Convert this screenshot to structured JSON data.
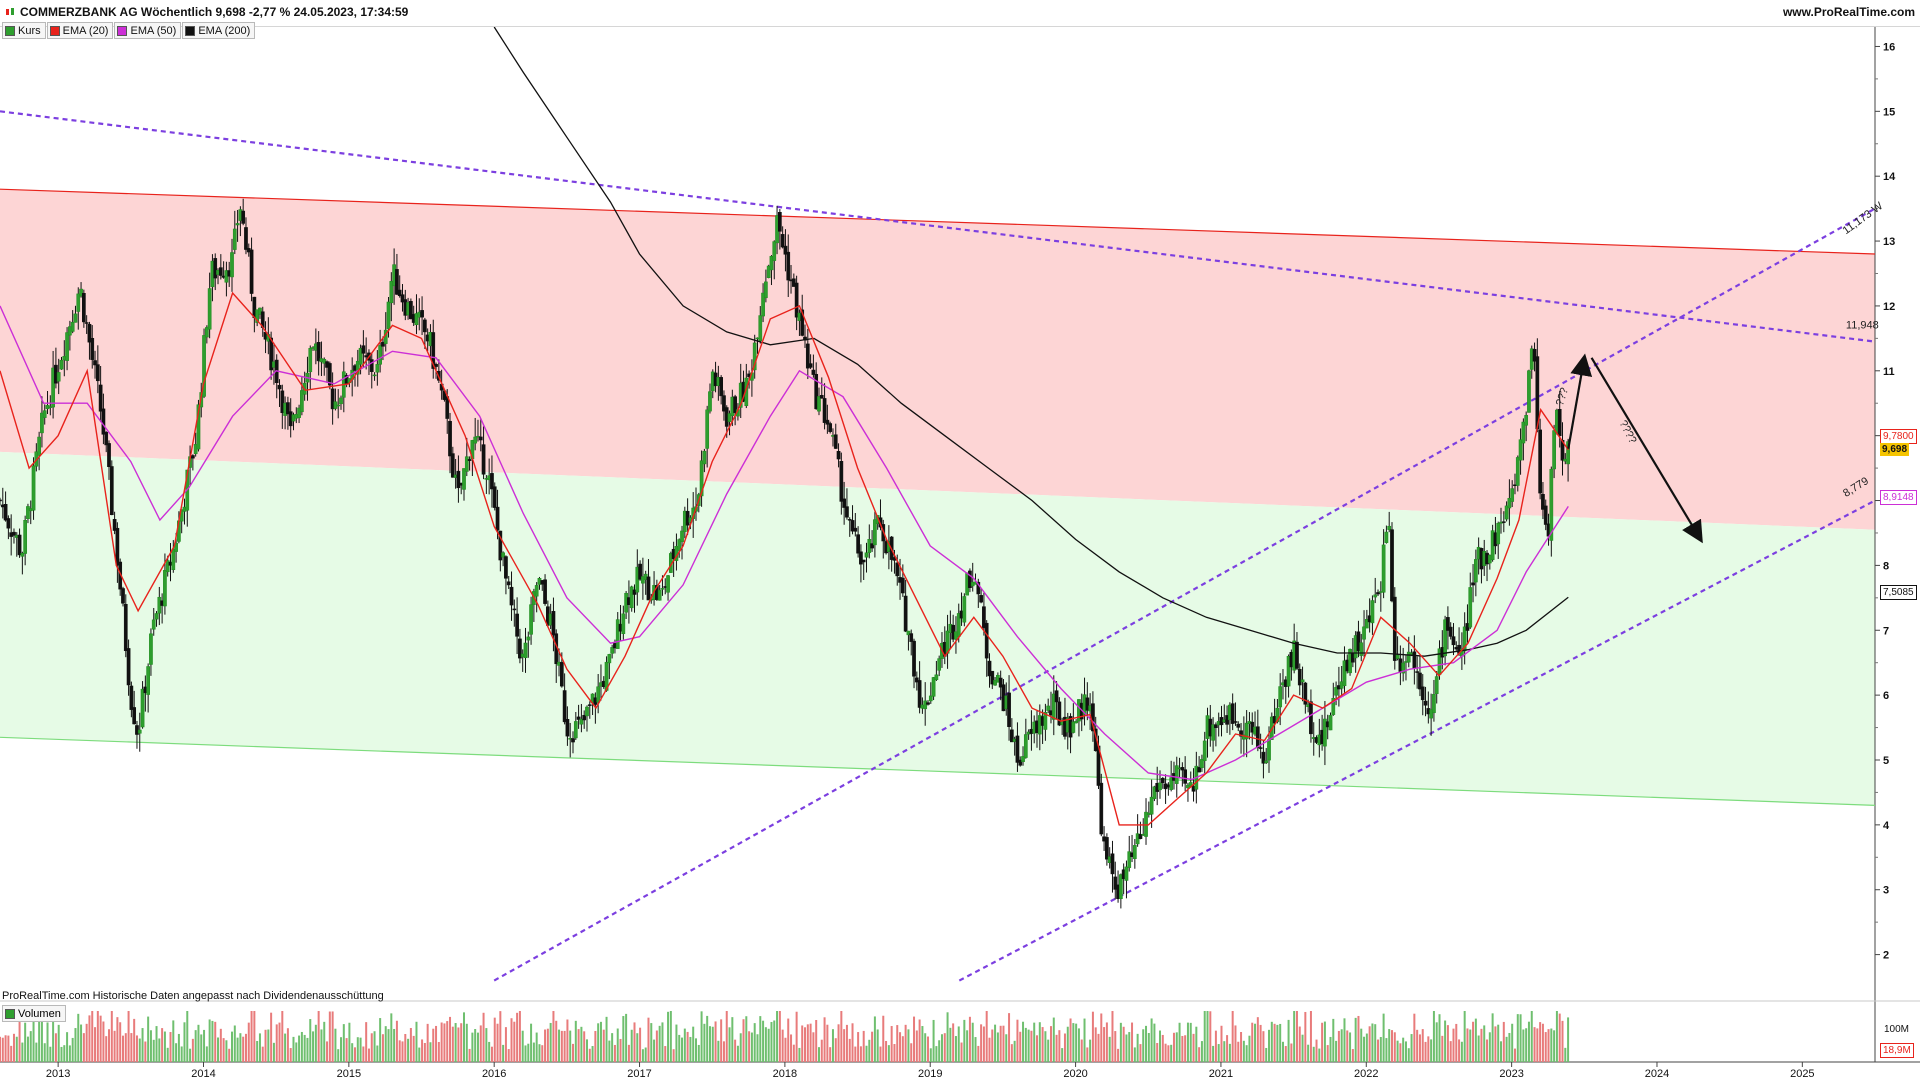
{
  "header": {
    "title": "COMMERZBANK AG Wöchentlich 9,698 -2,77 % 24.05.2023, 17:34:59",
    "source": "www.ProRealTime.com"
  },
  "legend": [
    {
      "label": "Kurs",
      "color": "#2e9e2e"
    },
    {
      "label": "EMA (20)",
      "color": "#e8231c"
    },
    {
      "label": "EMA (50)",
      "color": "#cc2fd6"
    },
    {
      "label": "EMA (200)",
      "color": "#111111"
    }
  ],
  "footer": {
    "note": "ProRealTime.com  Historische Daten angepasst nach Dividendenausschüttung",
    "volume_label": "Volumen",
    "vol_axis_label": "100M",
    "vol_current": "18,9M"
  },
  "price_labels": {
    "current": "9,698",
    "ema20": "9,7800",
    "ema50": "8,9148",
    "ema200": "7,5085"
  },
  "annotations": {
    "upper_channel_value": "11,173 W",
    "downtrend_value": "11,948",
    "lower_channel_value": "8,779",
    "question_1": "???",
    "question_2": "????"
  },
  "chart_data": {
    "type": "candlestick",
    "title": "COMMERZBANK AG Wöchentlich",
    "x_tick_labels": [
      "2013",
      "2014",
      "2015",
      "2016",
      "2017",
      "2018",
      "2019",
      "2020",
      "2021",
      "2022",
      "2023",
      "2024",
      "2025"
    ],
    "y_tick_labels": [
      "2",
      "3",
      "4",
      "5",
      "6",
      "7",
      "8",
      "9",
      "10",
      "11",
      "12",
      "13",
      "14",
      "15",
      "16"
    ],
    "ylim": [
      1.3,
      16.3
    ],
    "x_range": [
      2012.6,
      2025.5
    ],
    "price_path": [
      [
        2012.6,
        9.0
      ],
      [
        2012.75,
        8.2
      ],
      [
        2012.9,
        10.3
      ],
      [
        2013.05,
        11.5
      ],
      [
        2013.15,
        12.3
      ],
      [
        2013.3,
        10.3
      ],
      [
        2013.4,
        8.3
      ],
      [
        2013.5,
        6.0
      ],
      [
        2013.55,
        5.4
      ],
      [
        2013.65,
        7.0
      ],
      [
        2013.8,
        8.3
      ],
      [
        2013.95,
        10.0
      ],
      [
        2014.05,
        12.5
      ],
      [
        2014.2,
        12.7
      ],
      [
        2014.25,
        13.6
      ],
      [
        2014.35,
        12.0
      ],
      [
        2014.5,
        11.0
      ],
      [
        2014.6,
        10.0
      ],
      [
        2014.75,
        11.5
      ],
      [
        2014.9,
        10.5
      ],
      [
        2015.05,
        11.2
      ],
      [
        2015.2,
        11.0
      ],
      [
        2015.3,
        12.5
      ],
      [
        2015.4,
        12.0
      ],
      [
        2015.55,
        11.5
      ],
      [
        2015.65,
        10.5
      ],
      [
        2015.75,
        9.0
      ],
      [
        2015.85,
        10.0
      ],
      [
        2015.95,
        9.5
      ],
      [
        2016.1,
        7.5
      ],
      [
        2016.2,
        6.5
      ],
      [
        2016.3,
        7.8
      ],
      [
        2016.4,
        7.0
      ],
      [
        2016.5,
        5.5
      ],
      [
        2016.6,
        5.5
      ],
      [
        2016.7,
        6.0
      ],
      [
        2016.8,
        6.5
      ],
      [
        2016.9,
        7.5
      ],
      [
        2017.0,
        7.8
      ],
      [
        2017.15,
        7.5
      ],
      [
        2017.3,
        8.7
      ],
      [
        2017.4,
        9.0
      ],
      [
        2017.5,
        11.0
      ],
      [
        2017.6,
        10.3
      ],
      [
        2017.75,
        10.8
      ],
      [
        2017.85,
        12.3
      ],
      [
        2017.95,
        13.3
      ],
      [
        2018.05,
        12.3
      ],
      [
        2018.2,
        10.7
      ],
      [
        2018.3,
        10.2
      ],
      [
        2018.45,
        8.5
      ],
      [
        2018.55,
        8.0
      ],
      [
        2018.65,
        8.7
      ],
      [
        2018.75,
        8.0
      ],
      [
        2018.85,
        7.0
      ],
      [
        2018.95,
        5.7
      ],
      [
        2019.05,
        6.5
      ],
      [
        2019.2,
        7.3
      ],
      [
        2019.3,
        8.0
      ],
      [
        2019.4,
        6.5
      ],
      [
        2019.5,
        6.0
      ],
      [
        2019.6,
        5.0
      ],
      [
        2019.75,
        5.6
      ],
      [
        2019.85,
        5.8
      ],
      [
        2019.95,
        5.5
      ],
      [
        2020.1,
        6.0
      ],
      [
        2020.2,
        3.5
      ],
      [
        2020.3,
        3.0
      ],
      [
        2020.45,
        3.8
      ],
      [
        2020.55,
        4.6
      ],
      [
        2020.7,
        4.7
      ],
      [
        2020.8,
        4.5
      ],
      [
        2020.9,
        5.5
      ],
      [
        2021.05,
        5.7
      ],
      [
        2021.2,
        5.5
      ],
      [
        2021.3,
        5.0
      ],
      [
        2021.4,
        6.0
      ],
      [
        2021.5,
        6.7
      ],
      [
        2021.6,
        5.7
      ],
      [
        2021.7,
        5.3
      ],
      [
        2021.85,
        6.5
      ],
      [
        2022.0,
        7.0
      ],
      [
        2022.1,
        7.8
      ],
      [
        2022.15,
        8.9
      ],
      [
        2022.2,
        6.5
      ],
      [
        2022.3,
        6.7
      ],
      [
        2022.45,
        5.7
      ],
      [
        2022.55,
        7.2
      ],
      [
        2022.65,
        6.5
      ],
      [
        2022.75,
        8.0
      ],
      [
        2022.85,
        8.3
      ],
      [
        2023.0,
        9.0
      ],
      [
        2023.1,
        10.5
      ],
      [
        2023.15,
        11.6
      ],
      [
        2023.2,
        9.0
      ],
      [
        2023.25,
        8.5
      ],
      [
        2023.3,
        10.5
      ],
      [
        2023.35,
        9.5
      ],
      [
        2023.39,
        9.698
      ]
    ],
    "ema20_path": [
      [
        2012.6,
        11.0
      ],
      [
        2012.8,
        9.5
      ],
      [
        2013.0,
        10.0
      ],
      [
        2013.2,
        11.0
      ],
      [
        2013.4,
        8.0
      ],
      [
        2013.55,
        7.3
      ],
      [
        2013.8,
        8.3
      ],
      [
        2014.0,
        10.8
      ],
      [
        2014.2,
        12.2
      ],
      [
        2014.4,
        11.7
      ],
      [
        2014.7,
        10.7
      ],
      [
        2015.0,
        10.8
      ],
      [
        2015.3,
        11.7
      ],
      [
        2015.5,
        11.5
      ],
      [
        2015.8,
        10.0
      ],
      [
        2016.0,
        8.6
      ],
      [
        2016.3,
        7.4
      ],
      [
        2016.5,
        6.4
      ],
      [
        2016.7,
        5.8
      ],
      [
        2016.9,
        6.6
      ],
      [
        2017.1,
        7.6
      ],
      [
        2017.3,
        8.3
      ],
      [
        2017.5,
        9.6
      ],
      [
        2017.7,
        10.5
      ],
      [
        2017.9,
        11.8
      ],
      [
        2018.1,
        12.0
      ],
      [
        2018.3,
        10.9
      ],
      [
        2018.5,
        9.5
      ],
      [
        2018.7,
        8.4
      ],
      [
        2018.9,
        7.5
      ],
      [
        2019.1,
        6.6
      ],
      [
        2019.3,
        7.2
      ],
      [
        2019.5,
        6.6
      ],
      [
        2019.7,
        5.8
      ],
      [
        2019.9,
        5.6
      ],
      [
        2020.1,
        5.7
      ],
      [
        2020.3,
        4.0
      ],
      [
        2020.5,
        4.0
      ],
      [
        2020.7,
        4.4
      ],
      [
        2020.9,
        4.8
      ],
      [
        2021.1,
        5.4
      ],
      [
        2021.3,
        5.3
      ],
      [
        2021.5,
        6.0
      ],
      [
        2021.7,
        5.8
      ],
      [
        2021.9,
        6.1
      ],
      [
        2022.1,
        7.2
      ],
      [
        2022.3,
        6.8
      ],
      [
        2022.5,
        6.3
      ],
      [
        2022.7,
        6.8
      ],
      [
        2022.9,
        7.8
      ],
      [
        2023.05,
        8.7
      ],
      [
        2023.2,
        10.4
      ],
      [
        2023.39,
        9.78
      ]
    ],
    "ema50_path": [
      [
        2012.6,
        12.0
      ],
      [
        2012.9,
        10.5
      ],
      [
        2013.2,
        10.5
      ],
      [
        2013.5,
        9.6
      ],
      [
        2013.7,
        8.7
      ],
      [
        2013.9,
        9.2
      ],
      [
        2014.2,
        10.3
      ],
      [
        2014.5,
        11.0
      ],
      [
        2014.9,
        10.8
      ],
      [
        2015.3,
        11.3
      ],
      [
        2015.6,
        11.2
      ],
      [
        2015.9,
        10.3
      ],
      [
        2016.2,
        8.8
      ],
      [
        2016.5,
        7.5
      ],
      [
        2016.8,
        6.8
      ],
      [
        2017.0,
        6.9
      ],
      [
        2017.3,
        7.7
      ],
      [
        2017.6,
        9.1
      ],
      [
        2017.9,
        10.3
      ],
      [
        2018.1,
        11.0
      ],
      [
        2018.4,
        10.6
      ],
      [
        2018.7,
        9.5
      ],
      [
        2019.0,
        8.3
      ],
      [
        2019.3,
        7.8
      ],
      [
        2019.6,
        6.9
      ],
      [
        2019.9,
        6.1
      ],
      [
        2020.2,
        5.4
      ],
      [
        2020.5,
        4.8
      ],
      [
        2020.8,
        4.7
      ],
      [
        2021.1,
        5.0
      ],
      [
        2021.4,
        5.4
      ],
      [
        2021.7,
        5.8
      ],
      [
        2022.0,
        6.2
      ],
      [
        2022.3,
        6.4
      ],
      [
        2022.6,
        6.5
      ],
      [
        2022.9,
        7.0
      ],
      [
        2023.1,
        7.9
      ],
      [
        2023.39,
        8.91
      ]
    ],
    "ema200_path": [
      [
        2016.0,
        16.3
      ],
      [
        2016.2,
        15.6
      ],
      [
        2016.5,
        14.6
      ],
      [
        2016.8,
        13.6
      ],
      [
        2017.0,
        12.8
      ],
      [
        2017.3,
        12.0
      ],
      [
        2017.6,
        11.6
      ],
      [
        2017.9,
        11.4
      ],
      [
        2018.2,
        11.5
      ],
      [
        2018.5,
        11.1
      ],
      [
        2018.8,
        10.5
      ],
      [
        2019.1,
        10.0
      ],
      [
        2019.4,
        9.5
      ],
      [
        2019.7,
        9.0
      ],
      [
        2020.0,
        8.4
      ],
      [
        2020.3,
        7.9
      ],
      [
        2020.6,
        7.5
      ],
      [
        2020.9,
        7.2
      ],
      [
        2021.2,
        7.0
      ],
      [
        2021.5,
        6.8
      ],
      [
        2021.8,
        6.65
      ],
      [
        2022.1,
        6.65
      ],
      [
        2022.4,
        6.6
      ],
      [
        2022.7,
        6.7
      ],
      [
        2022.9,
        6.8
      ],
      [
        2023.1,
        7.0
      ],
      [
        2023.39,
        7.5085
      ]
    ],
    "zones": [
      {
        "name": "red",
        "color": "#fdd5d5",
        "top": [
          [
            2012.6,
            13.8
          ],
          [
            2025.5,
            12.8
          ]
        ],
        "bottom": [
          [
            2012.6,
            9.75
          ],
          [
            2025.5,
            8.55
          ]
        ]
      },
      {
        "name": "green",
        "color": "#e6fbe6",
        "top": [
          [
            2012.6,
            9.75
          ],
          [
            2025.5,
            8.55
          ]
        ],
        "bottom": [
          [
            2012.6,
            5.35
          ],
          [
            2025.5,
            4.3
          ]
        ]
      }
    ],
    "trendlines": [
      {
        "name": "upper-resistance",
        "color": "#e8231c",
        "style": "solid",
        "points": [
          [
            2012.6,
            13.8
          ],
          [
            2025.5,
            12.8
          ]
        ]
      },
      {
        "name": "lower-support",
        "color": "#7ddc7d",
        "style": "solid",
        "points": [
          [
            2012.6,
            5.35
          ],
          [
            2025.5,
            4.3
          ]
        ]
      },
      {
        "name": "downtrend",
        "color": "#7c3fe0",
        "style": "dashed",
        "points": [
          [
            2012.6,
            15.0
          ],
          [
            2025.5,
            11.45
          ]
        ]
      },
      {
        "name": "channel-upper",
        "color": "#7c3fe0",
        "style": "dashed",
        "points": [
          [
            2016.0,
            1.6
          ],
          [
            2025.5,
            13.5
          ]
        ]
      },
      {
        "name": "channel-lower",
        "color": "#7c3fe0",
        "style": "dashed",
        "points": [
          [
            2019.2,
            1.6
          ],
          [
            2025.5,
            9.0
          ]
        ]
      }
    ],
    "arrows": [
      {
        "name": "up-arrow",
        "from": [
          2023.39,
          9.8
        ],
        "to": [
          2023.5,
          11.2
        ]
      },
      {
        "name": "down-arrow",
        "from": [
          2023.55,
          11.2
        ],
        "to": [
          2024.3,
          8.4
        ]
      }
    ]
  }
}
